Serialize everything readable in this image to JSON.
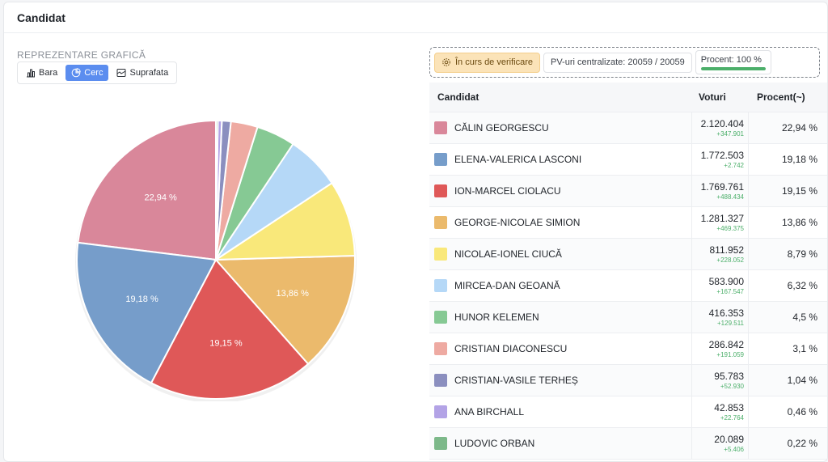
{
  "header": {
    "title": "Candidat"
  },
  "chart_section": {
    "label": "REPREZENTARE GRAFICĂ",
    "tabs": [
      {
        "label": "Bara",
        "icon": "bar-chart-icon",
        "active": false
      },
      {
        "label": "Cerc",
        "icon": "pie-chart-icon",
        "active": true
      },
      {
        "label": "Suprafata",
        "icon": "area-chart-icon",
        "active": false
      }
    ]
  },
  "status": {
    "verify_label": "În curs de verificare",
    "pv_label": "PV-uri centralizate: 20059 / 20059",
    "percent_label": "Procent: 100 %",
    "percent_value": 100
  },
  "table": {
    "headers": {
      "candidate": "Candidat",
      "votes": "Voturi",
      "percent": "Procent(~)"
    },
    "rows": [
      {
        "name": "CĂLIN GEORGESCU",
        "votes": "2.120.404",
        "delta": "+347.901",
        "percent": "22,94 %",
        "color": "#d9879a"
      },
      {
        "name": "ELENA-VALERICA LASCONI",
        "votes": "1.772.503",
        "delta": "+2.742",
        "percent": "19,18 %",
        "color": "#769dca"
      },
      {
        "name": "ION-MARCEL CIOLACU",
        "votes": "1.769.761",
        "delta": "+488.434",
        "percent": "19,15 %",
        "color": "#df5858"
      },
      {
        "name": "GEORGE-NICOLAE SIMION",
        "votes": "1.281.327",
        "delta": "+469.375",
        "percent": "13,86 %",
        "color": "#ebba6c"
      },
      {
        "name": "NICOLAE-IONEL CIUCĂ",
        "votes": "811.952",
        "delta": "+228.052",
        "percent": "8,79 %",
        "color": "#f9e87a"
      },
      {
        "name": "MIRCEA-DAN GEOANĂ",
        "votes": "583.900",
        "delta": "+167.547",
        "percent": "6,32 %",
        "color": "#b5d8f7"
      },
      {
        "name": "HUNOR KELEMEN",
        "votes": "416.353",
        "delta": "+129.511",
        "percent": "4,5 %",
        "color": "#86c994"
      },
      {
        "name": "CRISTIAN DIACONESCU",
        "votes": "286.842",
        "delta": "+191.059",
        "percent": "3,1 %",
        "color": "#eeaaa2"
      },
      {
        "name": "CRISTIAN-VASILE TERHEȘ",
        "votes": "95.783",
        "delta": "+52.930",
        "percent": "1,04 %",
        "color": "#8b8fbf"
      },
      {
        "name": "ANA BIRCHALL",
        "votes": "42.853",
        "delta": "+22.764",
        "percent": "0,46 %",
        "color": "#b3a3e6"
      },
      {
        "name": "LUDOVIC ORBAN",
        "votes": "20.089",
        "delta": "+5.406",
        "percent": "0,22 %",
        "color": "#7db98a"
      }
    ]
  },
  "chart_data": {
    "type": "pie",
    "slices": [
      {
        "label": "CĂLIN GEORGESCU",
        "value": 22.94,
        "display": "22,94 %",
        "color": "#d9879a"
      },
      {
        "label": "ELENA-VALERICA LASCONI",
        "value": 19.18,
        "display": "19,18 %",
        "color": "#769dca"
      },
      {
        "label": "ION-MARCEL CIOLACU",
        "value": 19.15,
        "display": "19,15 %",
        "color": "#df5858"
      },
      {
        "label": "GEORGE-NICOLAE SIMION",
        "value": 13.86,
        "display": "13,86 %",
        "color": "#ebba6c"
      },
      {
        "label": "NICOLAE-IONEL CIUCĂ",
        "value": 8.79,
        "display": "",
        "color": "#f9e87a"
      },
      {
        "label": "MIRCEA-DAN GEOANĂ",
        "value": 6.32,
        "display": "",
        "color": "#b5d8f7"
      },
      {
        "label": "HUNOR KELEMEN",
        "value": 4.5,
        "display": "",
        "color": "#86c994"
      },
      {
        "label": "CRISTIAN DIACONESCU",
        "value": 3.1,
        "display": "",
        "color": "#eeaaa2"
      },
      {
        "label": "CRISTIAN-VASILE TERHEȘ",
        "value": 1.04,
        "display": "",
        "color": "#8b8fbf"
      },
      {
        "label": "ANA BIRCHALL",
        "value": 0.46,
        "display": "",
        "color": "#b3a3e6"
      },
      {
        "label": "LUDOVIC ORBAN",
        "value": 0.22,
        "display": "",
        "color": "#7db98a"
      }
    ]
  }
}
